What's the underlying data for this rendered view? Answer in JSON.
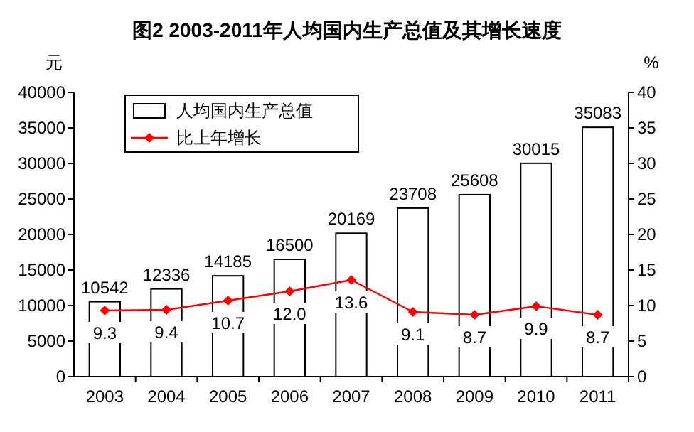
{
  "chart_data": {
    "type": "bar",
    "title": "图2  2003-2011年人均国内生产总值及其增长速度",
    "ylabel": "元",
    "y2label": "%",
    "categories": [
      "2003",
      "2004",
      "2005",
      "2006",
      "2007",
      "2008",
      "2009",
      "2010",
      "2011"
    ],
    "series": [
      {
        "name": "人均国内生产总值",
        "color": "#ffffff",
        "values": [
          10542,
          12336,
          14185,
          16500,
          20169,
          23708,
          25608,
          30015,
          35083
        ],
        "value_labels": [
          "10542",
          "12336",
          "14185",
          "16500",
          "20169",
          "23708",
          "25608",
          "30015",
          "35083"
        ]
      },
      {
        "name": "比上年增长",
        "type": "line",
        "axis": "y2",
        "color": "#ff0000",
        "marker": "diamond",
        "values": [
          9.3,
          9.4,
          10.7,
          12.0,
          13.6,
          9.1,
          8.7,
          9.9,
          8.7
        ],
        "value_labels": [
          "9.3",
          "9.4",
          "10.7",
          "12.0",
          "13.6",
          "9.1",
          "8.7",
          "9.9",
          "8.7"
        ]
      }
    ],
    "ylim": [
      0,
      40000
    ],
    "yticks": [
      0,
      5000,
      10000,
      15000,
      20000,
      25000,
      30000,
      35000,
      40000
    ],
    "y2lim": [
      0,
      40
    ],
    "y2ticks": [
      0,
      5,
      10,
      15,
      20,
      25,
      30,
      35,
      40
    ],
    "legend": "top left"
  }
}
